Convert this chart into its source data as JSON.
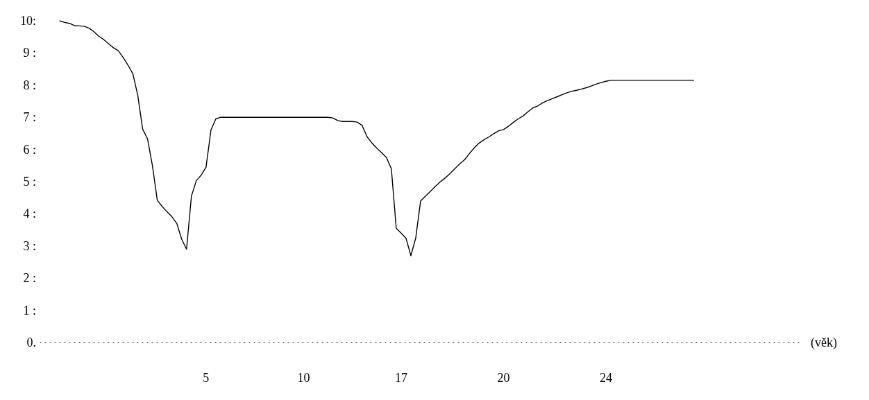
{
  "chart_data": {
    "type": "line",
    "xlabel": "(věk)",
    "categories": [
      null,
      null,
      null,
      null,
      null,
      null,
      null,
      null,
      null,
      null,
      null,
      null,
      null,
      null,
      null,
      null,
      null,
      null,
      null,
      null,
      null,
      null,
      null,
      null,
      null,
      null,
      null,
      null,
      null,
      null,
      null,
      null,
      null,
      null,
      "5",
      null,
      null,
      null,
      null,
      null,
      null,
      null,
      null,
      null,
      null,
      null,
      null,
      null,
      null,
      null,
      null,
      null,
      null,
      null,
      "10",
      null,
      null,
      null,
      null,
      null,
      null,
      null,
      null,
      null,
      null,
      null,
      null,
      null,
      null,
      null,
      null,
      null,
      null,
      null,
      "17",
      null,
      null,
      null,
      null,
      null,
      null,
      null,
      null,
      null,
      null,
      null,
      null,
      null,
      null,
      null,
      null,
      null,
      null,
      null,
      null,
      "20",
      null,
      null,
      null,
      null,
      null,
      null,
      null,
      null,
      null,
      null,
      null,
      null,
      null,
      null,
      null,
      null,
      null,
      null,
      null,
      null,
      "24",
      null,
      null,
      null,
      null,
      null,
      null,
      null,
      null,
      null,
      null,
      null,
      null,
      null,
      null,
      null,
      null,
      null,
      null,
      null,
      null,
      null,
      null,
      null,
      null,
      null,
      null,
      null,
      null,
      null,
      null,
      null,
      null,
      null,
      null,
      null,
      null,
      null,
      null,
      null,
      null
    ],
    "values": [
      null,
      null,
      null,
      null,
      10.0,
      9.95,
      9.92,
      9.85,
      9.84,
      9.83,
      9.77,
      9.66,
      9.52,
      9.42,
      9.29,
      9.16,
      9.07,
      8.86,
      8.62,
      8.35,
      7.68,
      6.63,
      6.33,
      5.5,
      4.42,
      4.23,
      4.06,
      3.91,
      3.7,
      3.21,
      2.9,
      4.55,
      5.03,
      5.2,
      5.45,
      6.6,
      6.95,
      7.0,
      7.0,
      7.0,
      7.0,
      7.0,
      7.0,
      7.0,
      7.0,
      7.0,
      7.0,
      7.0,
      7.0,
      7.0,
      7.0,
      7.0,
      7.0,
      7.0,
      7.0,
      7.0,
      7.0,
      7.0,
      7.0,
      7.0,
      6.98,
      6.9,
      6.87,
      6.87,
      6.87,
      6.85,
      6.75,
      6.4,
      6.2,
      6.04,
      5.9,
      5.75,
      5.4,
      3.55,
      3.4,
      3.24,
      2.7,
      3.25,
      4.4,
      4.55,
      4.7,
      4.85,
      4.99,
      5.11,
      5.25,
      5.4,
      5.55,
      5.68,
      5.87,
      6.05,
      6.2,
      6.3,
      6.39,
      6.49,
      6.58,
      6.62,
      6.72,
      6.84,
      6.95,
      7.04,
      7.17,
      7.29,
      7.35,
      7.45,
      7.52,
      7.58,
      7.64,
      7.7,
      7.76,
      7.81,
      7.84,
      7.88,
      7.92,
      7.97,
      8.03,
      8.08,
      8.12,
      8.15,
      8.15,
      8.15,
      8.15,
      8.15,
      8.15,
      8.15,
      8.15,
      8.15,
      8.15,
      8.15,
      8.15,
      8.15,
      8.15,
      8.15,
      8.15,
      8.15,
      8.15,
      null,
      null,
      null,
      null,
      null,
      null,
      null,
      null,
      null,
      null,
      null,
      null,
      null,
      null,
      null,
      null,
      null,
      null,
      null,
      null,
      null,
      null
    ],
    "color": "#000000",
    "ylim": [
      0,
      10
    ],
    "yticks": [
      {
        "value": 0,
        "label": "0."
      },
      {
        "value": 1,
        "label": "1 :"
      },
      {
        "value": 2,
        "label": "2 :"
      },
      {
        "value": 3,
        "label": "3 :"
      },
      {
        "value": 4,
        "label": "4 :"
      },
      {
        "value": 5,
        "label": "5 :"
      },
      {
        "value": 6,
        "label": "6 :"
      },
      {
        "value": 7,
        "label": "7 :"
      },
      {
        "value": 8,
        "label": "8 :"
      },
      {
        "value": 9,
        "label": "9 :"
      },
      {
        "value": 10,
        "label": "10:"
      }
    ],
    "grid": false,
    "marker": "none",
    "line_style": "solid"
  }
}
